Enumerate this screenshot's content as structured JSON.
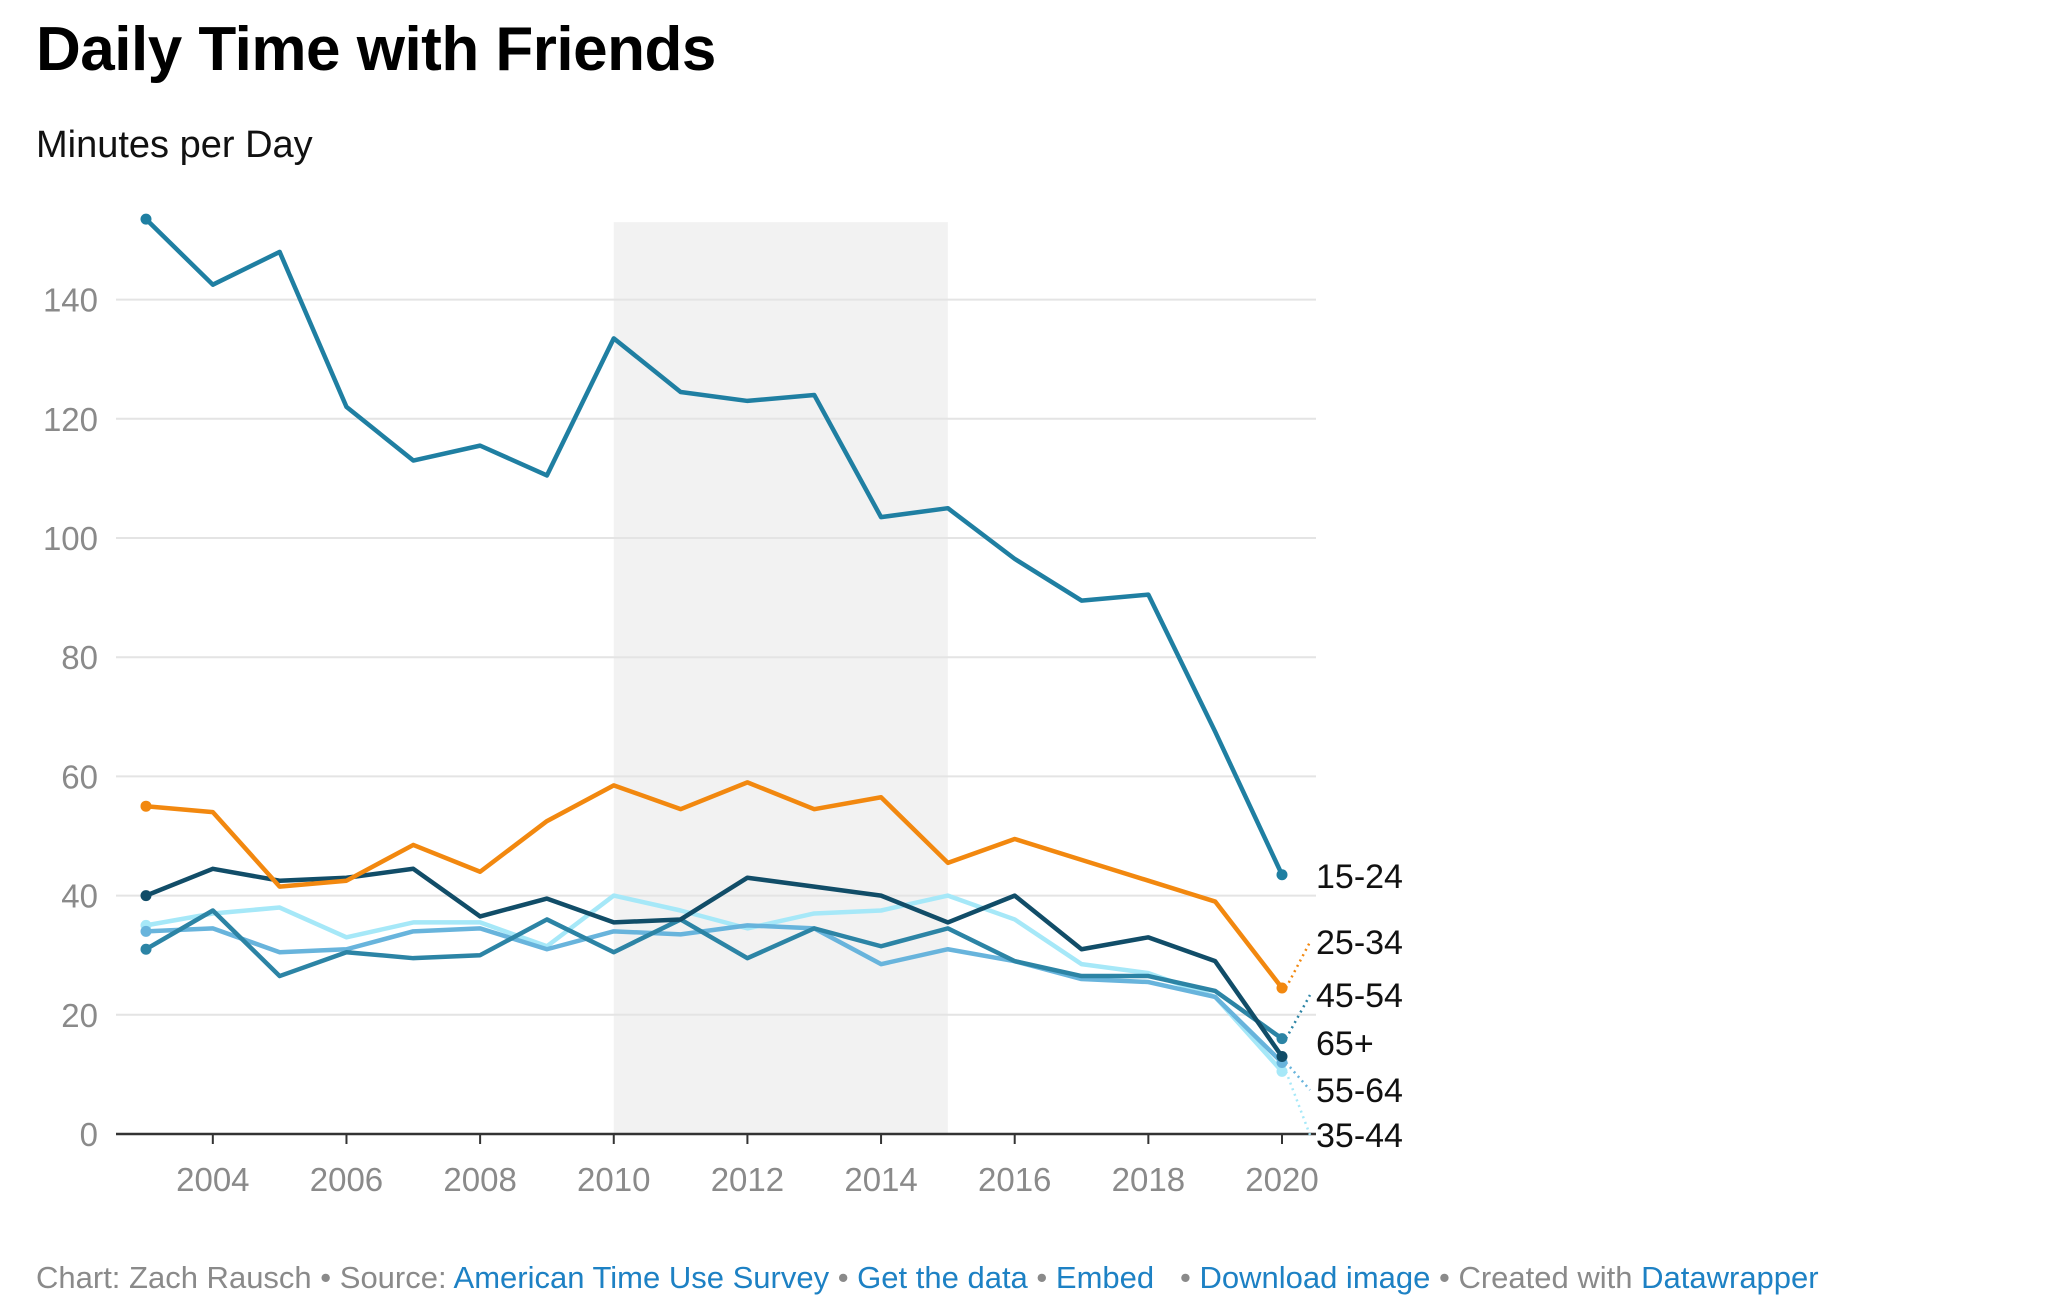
{
  "title": "Daily Time with Friends",
  "subtitle": "Minutes per Day",
  "footer": {
    "chart_by": "Chart: Zach Rausch",
    "source_prefix": "Source:",
    "source_link": "American Time Use Survey",
    "get_data": "Get the data",
    "embed": "Embed",
    "download": "Download image",
    "created_with": "Created with",
    "datawrapper": "Datawrapper"
  },
  "chart_data": {
    "type": "line",
    "title": "Daily Time with Friends",
    "subtitle": "Minutes per Day",
    "xlabel": "",
    "ylabel": "",
    "x": [
      2003,
      2004,
      2005,
      2006,
      2007,
      2008,
      2009,
      2010,
      2011,
      2012,
      2013,
      2014,
      2015,
      2016,
      2017,
      2018,
      2019,
      2020
    ],
    "xticks": [
      2004,
      2006,
      2008,
      2010,
      2012,
      2014,
      2016,
      2018,
      2020
    ],
    "yticks": [
      0,
      20,
      40,
      60,
      80,
      100,
      120,
      140
    ],
    "ylim": [
      0,
      153
    ],
    "xlim": [
      2003,
      2020
    ],
    "grid": true,
    "highlight_range": [
      2010,
      2015
    ],
    "series": [
      {
        "name": "35-44",
        "color": "#a6e8f8",
        "values": [
          35,
          37,
          38,
          33,
          35.5,
          35.5,
          31.5,
          40,
          37.5,
          34.5,
          37,
          37.5,
          40,
          36,
          28.5,
          27,
          23,
          10.5
        ]
      },
      {
        "name": "55-64",
        "color": "#68b4dc",
        "values": [
          34,
          34.5,
          30.5,
          31,
          34,
          34.5,
          31,
          34,
          33.5,
          35,
          34.5,
          28.5,
          31,
          29,
          26,
          25.5,
          23,
          12
        ]
      },
      {
        "name": "45-54",
        "color": "#2c84a5",
        "values": [
          31,
          37.5,
          26.5,
          30.5,
          29.5,
          30,
          36,
          30.5,
          36,
          29.5,
          34.5,
          31.5,
          34.5,
          29,
          26.5,
          26.5,
          24,
          16
        ]
      },
      {
        "name": "65+",
        "color": "#114d68",
        "values": [
          40,
          44.5,
          42.5,
          43,
          44.5,
          36.5,
          39.5,
          35.5,
          36,
          43,
          41.5,
          40,
          35.5,
          40,
          31,
          33,
          29,
          13
        ]
      },
      {
        "name": "25-34",
        "color": "#f2880f",
        "values": [
          55,
          54,
          41.5,
          42.5,
          48.5,
          44,
          52.5,
          58.5,
          54.5,
          59,
          54.5,
          56.5,
          45.5,
          49.5,
          46,
          42.5,
          39,
          24.5
        ]
      },
      {
        "name": "15-24",
        "color": "#1f7fa2",
        "values": [
          153.5,
          142.5,
          148,
          122,
          113,
          115.5,
          110.5,
          133.5,
          124.5,
          123,
          124,
          103.5,
          105,
          96.5,
          89.5,
          90.5,
          67.5,
          43.5
        ]
      }
    ],
    "end_labels": [
      {
        "series": "15-24",
        "label": "15-24"
      },
      {
        "series": "25-34",
        "label": "25-34"
      },
      {
        "series": "45-54",
        "label": "45-54"
      },
      {
        "series": "65+",
        "label": "65+"
      },
      {
        "series": "55-64",
        "label": "55-64"
      },
      {
        "series": "35-44",
        "label": "35-44"
      }
    ],
    "colors": {
      "grid": "#e4e4e4",
      "axis": "#333333",
      "tick_text": "#8a8a8a",
      "highlight": "#f2f2f2"
    }
  }
}
